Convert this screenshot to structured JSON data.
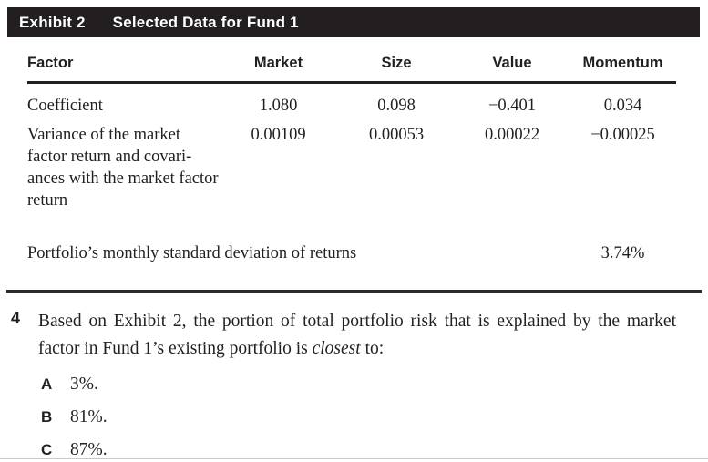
{
  "exhibit": {
    "label": "Exhibit 2",
    "title": "Selected Data for Fund 1",
    "table": {
      "columns": [
        "Factor",
        "Market",
        "Size",
        "Value",
        "Momentum"
      ],
      "rows": [
        {
          "factor": "Coefficient",
          "market": "1.080",
          "size": "0.098",
          "value": "−0.401",
          "momentum": "0.034"
        },
        {
          "factor": "Variance of the market\nfactor return and covari-\nances with the market factor\nreturn",
          "market": "0.00109",
          "size": "0.00053",
          "value": "0.00022",
          "momentum": "−0.00025"
        }
      ],
      "summary_row": {
        "label": "Portfolio’s monthly standard deviation of returns",
        "value": "3.74%"
      }
    }
  },
  "question": {
    "number": "4",
    "text_before": "Based on Exhibit 2, the portion of total portfolio risk that is explained by the market factor in Fund 1’s existing portfolio is ",
    "emphasis": "closest",
    "text_after": " to:",
    "options": [
      {
        "letter": "A",
        "text": "3%."
      },
      {
        "letter": "B",
        "text": "81%."
      },
      {
        "letter": "C",
        "text": "87%."
      }
    ]
  },
  "colors": {
    "header_bar": "#231f20",
    "text": "#231f20",
    "rule": "#231f20"
  }
}
